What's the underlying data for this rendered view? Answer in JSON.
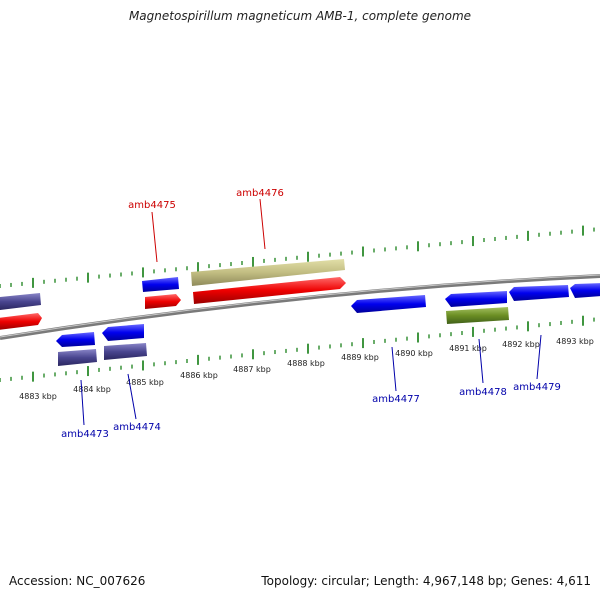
{
  "title": "Magnetospirillum magneticum AMB-1, complete genome",
  "footer": {
    "accession": "Accession: NC_007626",
    "topology": "Topology: circular; Length: 4,967,148 bp; Genes: 4,611"
  },
  "colors": {
    "backbone": "#8c8c8c",
    "tick": "#2a8a2a",
    "label_red": "#cc0000",
    "label_blue": "#0000aa"
  },
  "scale_labels": [
    "4883 kbp",
    "4884 kbp",
    "4885 kbp",
    "4886 kbp",
    "4887 kbp",
    "4888 kbp",
    "4889 kbp",
    "4890 kbp",
    "4891 kbp",
    "4892 kbp",
    "4893 kbp"
  ],
  "gene_labels": [
    {
      "id": "amb4475",
      "color": "red"
    },
    {
      "id": "amb4476",
      "color": "red"
    },
    {
      "id": "amb4473",
      "color": "blue"
    },
    {
      "id": "amb4474",
      "color": "blue"
    },
    {
      "id": "amb4477",
      "color": "blue"
    },
    {
      "id": "amb4478",
      "color": "blue"
    },
    {
      "id": "amb4479",
      "color": "blue"
    }
  ]
}
